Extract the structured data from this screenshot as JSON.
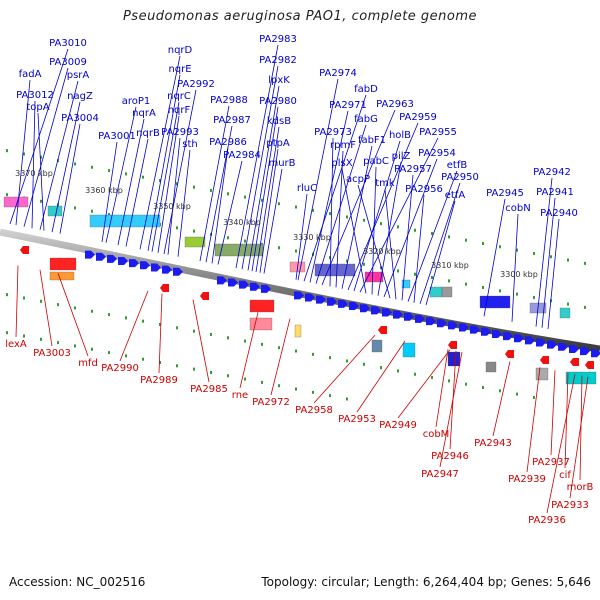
{
  "title": "Pseudomonas aeruginosa PAO1, complete genome",
  "accession": "Accession: NC_002516",
  "summary": "Topology: circular; Length: 6,264,404 bp; Genes: 5,646",
  "kbp_ticks": [
    "3370 kbp",
    "3360 kbp",
    "3350 kbp",
    "3340 kbp",
    "3330 kbp",
    "3320 kbp",
    "3310 kbp",
    "3300 kbp"
  ],
  "labels_forward": [
    "PA3010",
    "fadA",
    "PA3009",
    "PA3012",
    "psrA",
    "topA",
    "nagZ",
    "PA3004",
    "nqrD",
    "nqrE",
    "aroP1",
    "nqrC",
    "nqrA",
    "nqrF",
    "PA2992",
    "PA3001",
    "nqrB",
    "PA2993",
    "sth",
    "PA2988",
    "PA2987",
    "PA2986",
    "PA2984",
    "PA2983",
    "PA2982",
    "lpxK",
    "PA2980",
    "kdsB",
    "ptpA",
    "murB",
    "PA2974",
    "fabD",
    "PA2971",
    "fabG",
    "PA2963",
    "PA2973",
    "rpmF",
    "fabF1",
    "PA2959",
    "holB",
    "PA2955",
    "plsX",
    "pabC",
    "pilZ",
    "PA2954",
    "acpP",
    "tmk",
    "PA2957",
    "etfB",
    "PA2956",
    "PA2950",
    "etfA",
    "rluC",
    "PA2945",
    "cobN",
    "PA2942",
    "PA2941",
    "PA2940"
  ],
  "labels_reverse": [
    "lexA",
    "PA3003",
    "mfd",
    "PA2990",
    "PA2989",
    "PA2985",
    "rne",
    "PA2972",
    "PA2958",
    "PA2953",
    "PA2949",
    "cobM",
    "PA2946",
    "PA2947",
    "PA2943",
    "PA2939",
    "PA2937",
    "cif",
    "morB",
    "PA2933",
    "PA2936"
  ],
  "colors": {
    "forward": "#0000cc",
    "reverse": "#cc0000",
    "backbone": "#777777",
    "tick": "#2e9e2e",
    "gene_fwd": "#1c1cf0",
    "gene_rev": "#ee1111"
  }
}
